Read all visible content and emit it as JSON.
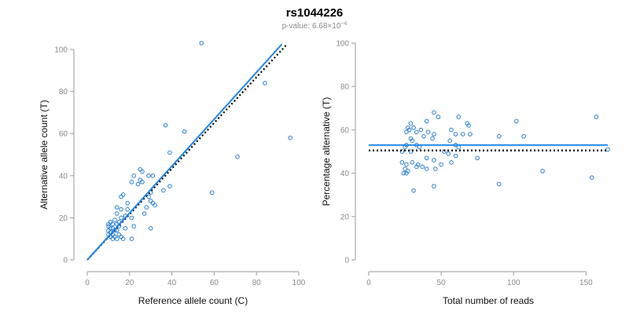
{
  "header": {
    "title": "rs1044226",
    "subtitle_prefix": "p-value: 6.68×10",
    "subtitle_exponent": "−4"
  },
  "colors": {
    "points": "#2a7fd0",
    "fit_line": "#1f86e8",
    "reference_line": "#000000",
    "axis": "#9a9a9a"
  },
  "chart_data": [
    {
      "type": "scatter",
      "title": "",
      "xlabel": "Reference allele count (C)",
      "ylabel": "Alternative allele count (T)",
      "xlim": [
        0,
        100
      ],
      "ylim": [
        0,
        100
      ],
      "xticks": [
        0,
        20,
        40,
        60,
        80,
        100
      ],
      "yticks": [
        0,
        20,
        40,
        60,
        80,
        100
      ],
      "grid": false,
      "fit_line": {
        "style": "solid",
        "x": [
          0,
          92
        ],
        "y": [
          0,
          102.5
        ]
      },
      "reference_line": {
        "style": "dotted",
        "x": [
          0,
          94
        ],
        "y": [
          0,
          102
        ]
      },
      "points": [
        [
          54,
          103
        ],
        [
          84,
          84
        ],
        [
          37,
          64
        ],
        [
          46,
          61
        ],
        [
          96,
          58
        ],
        [
          39,
          51
        ],
        [
          71,
          49
        ],
        [
          59,
          32
        ],
        [
          25,
          43
        ],
        [
          26,
          42
        ],
        [
          22,
          40
        ],
        [
          29,
          40
        ],
        [
          31,
          40
        ],
        [
          25,
          38
        ],
        [
          24,
          36
        ],
        [
          26,
          37
        ],
        [
          21,
          37
        ],
        [
          39,
          35
        ],
        [
          36,
          33
        ],
        [
          30,
          32
        ],
        [
          29,
          30
        ],
        [
          30,
          28
        ],
        [
          31,
          27
        ],
        [
          32,
          26
        ],
        [
          28,
          25
        ],
        [
          19,
          27
        ],
        [
          16,
          30
        ],
        [
          17,
          31
        ],
        [
          14,
          25
        ],
        [
          16,
          24
        ],
        [
          19,
          24
        ],
        [
          27,
          22
        ],
        [
          14,
          22
        ],
        [
          18,
          21
        ],
        [
          21,
          20
        ],
        [
          16,
          20
        ],
        [
          13,
          19
        ],
        [
          15,
          18
        ],
        [
          11,
          18
        ],
        [
          12,
          17
        ],
        [
          10,
          17
        ],
        [
          14,
          17
        ],
        [
          15,
          16
        ],
        [
          10,
          16
        ],
        [
          12,
          15
        ],
        [
          11,
          15
        ],
        [
          13,
          14
        ],
        [
          14,
          14
        ],
        [
          18,
          15
        ],
        [
          22,
          16
        ],
        [
          30,
          15
        ],
        [
          10,
          14
        ],
        [
          11,
          13
        ],
        [
          12,
          12
        ],
        [
          15,
          12
        ],
        [
          16,
          11
        ],
        [
          13,
          11
        ],
        [
          17,
          10
        ],
        [
          14,
          10
        ],
        [
          12,
          10
        ],
        [
          11,
          11
        ],
        [
          21,
          10
        ],
        [
          10,
          12
        ]
      ]
    },
    {
      "type": "scatter",
      "title": "",
      "xlabel": "Total number of reads",
      "ylabel": "Percentage alternative (T)",
      "xlim": [
        0,
        165
      ],
      "ylim": [
        0,
        100
      ],
      "xticks": [
        0,
        50,
        100,
        150
      ],
      "yticks": [
        0,
        20,
        40,
        60,
        80,
        100
      ],
      "grid": false,
      "fit_line": {
        "style": "solid",
        "x": [
          0,
          165
        ],
        "y": [
          53,
          53
        ]
      },
      "reference_line": {
        "style": "dotted",
        "x": [
          0,
          165
        ],
        "y": [
          50.5,
          50.5
        ]
      },
      "points": [
        [
          157,
          66
        ],
        [
          102,
          64
        ],
        [
          45,
          68
        ],
        [
          48,
          66
        ],
        [
          62,
          66
        ],
        [
          29,
          63
        ],
        [
          40,
          64
        ],
        [
          68,
          63
        ],
        [
          69,
          62
        ],
        [
          27,
          61
        ],
        [
          31,
          61
        ],
        [
          26,
          59
        ],
        [
          28,
          60
        ],
        [
          36,
          60
        ],
        [
          41,
          59
        ],
        [
          33,
          59
        ],
        [
          45,
          58
        ],
        [
          57,
          60
        ],
        [
          60,
          58
        ],
        [
          65,
          58
        ],
        [
          70,
          58
        ],
        [
          107,
          57
        ],
        [
          90,
          57
        ],
        [
          29,
          56
        ],
        [
          30,
          55
        ],
        [
          38,
          57
        ],
        [
          44,
          56
        ],
        [
          56,
          55
        ],
        [
          26,
          53
        ],
        [
          33,
          53
        ],
        [
          35,
          52
        ],
        [
          60,
          53
        ],
        [
          62,
          52
        ],
        [
          25,
          52
        ],
        [
          29,
          50
        ],
        [
          23,
          50
        ],
        [
          52,
          50
        ],
        [
          55,
          49
        ],
        [
          60,
          48
        ],
        [
          75,
          47
        ],
        [
          40,
          47
        ],
        [
          45,
          46
        ],
        [
          30,
          45
        ],
        [
          26,
          44
        ],
        [
          23,
          45
        ],
        [
          34,
          44
        ],
        [
          50,
          44
        ],
        [
          57,
          45
        ],
        [
          25,
          42
        ],
        [
          27,
          41
        ],
        [
          33,
          43
        ],
        [
          24,
          40
        ],
        [
          26,
          40
        ],
        [
          40,
          42
        ],
        [
          46,
          42
        ],
        [
          37,
          43
        ],
        [
          120,
          41
        ],
        [
          165,
          51
        ],
        [
          90,
          35
        ],
        [
          154,
          38
        ],
        [
          31,
          32
        ],
        [
          45,
          34
        ]
      ]
    }
  ]
}
